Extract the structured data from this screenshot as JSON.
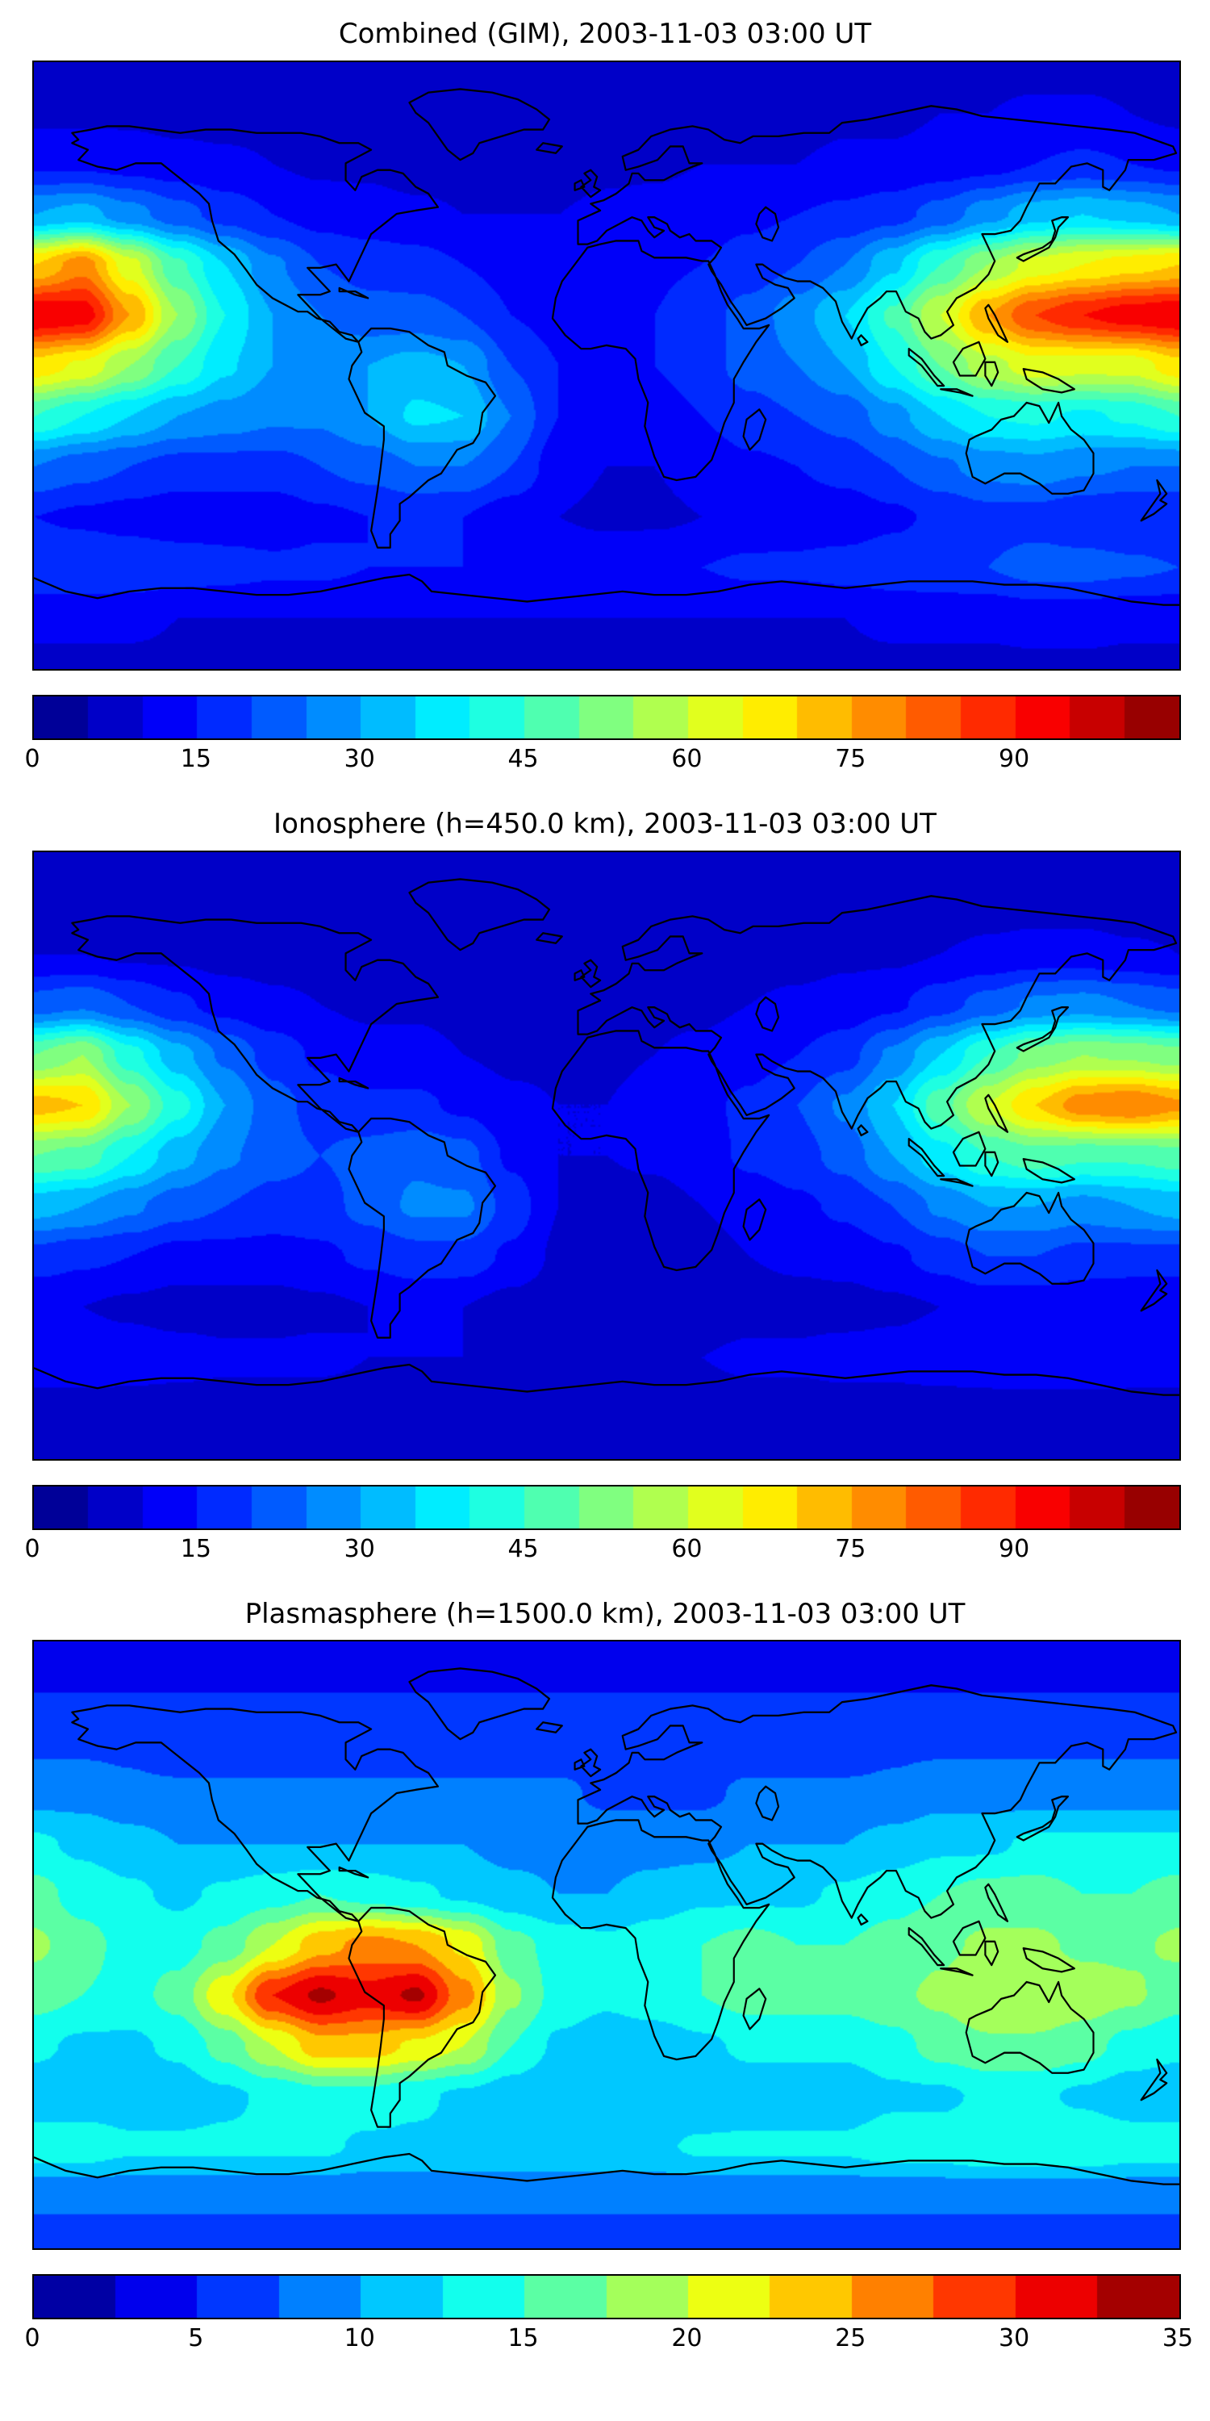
{
  "figure": {
    "background": "#ffffff",
    "text_color": "#000000",
    "colormap": "jet"
  },
  "chart_data": [
    {
      "type": "heatmap",
      "title": "Combined (GIM), 2003-11-03 03:00 UT",
      "projection": "equirectangular",
      "colormap": "jet",
      "vmin": 0,
      "vmax": 105,
      "level_step": 5,
      "colorbar_ticks": [
        0,
        15,
        30,
        45,
        60,
        75,
        90
      ],
      "lon": [
        -180,
        -165,
        -150,
        -135,
        -120,
        -105,
        -90,
        -75,
        -60,
        -45,
        -30,
        -15,
        0,
        15,
        30,
        45,
        60,
        75,
        90,
        105,
        120,
        135,
        150,
        165,
        180
      ],
      "lat": [
        90,
        75,
        60,
        45,
        30,
        15,
        0,
        -15,
        -30,
        -45,
        -60,
        -75,
        -90
      ],
      "values": [
        [
          8,
          8,
          8,
          8,
          8,
          8,
          8,
          8,
          8,
          8,
          8,
          8,
          8,
          8,
          8,
          8,
          8,
          8,
          8,
          8,
          8,
          8,
          8,
          8,
          8
        ],
        [
          9,
          9,
          9,
          8,
          8,
          8,
          8,
          8,
          7,
          7,
          7,
          7,
          7,
          8,
          8,
          8,
          8,
          9,
          9,
          10,
          10,
          11,
          11,
          10,
          9
        ],
        [
          14,
          14,
          13,
          12,
          11,
          10,
          9,
          9,
          8,
          8,
          8,
          8,
          9,
          9,
          10,
          10,
          10,
          11,
          11,
          12,
          13,
          15,
          16,
          15,
          14
        ],
        [
          30,
          32,
          27,
          22,
          18,
          15,
          13,
          12,
          11,
          10,
          10,
          10,
          11,
          12,
          13,
          14,
          15,
          16,
          18,
          22,
          28,
          33,
          35,
          33,
          30
        ],
        [
          70,
          78,
          62,
          46,
          35,
          26,
          20,
          18,
          17,
          15,
          13,
          12,
          12,
          14,
          15,
          17,
          20,
          25,
          34,
          45,
          55,
          62,
          65,
          68,
          70
        ],
        [
          95,
          93,
          75,
          55,
          40,
          30,
          25,
          22,
          22,
          20,
          15,
          13,
          13,
          15,
          18,
          22,
          28,
          35,
          46,
          60,
          75,
          85,
          90,
          93,
          95
        ],
        [
          68,
          64,
          55,
          45,
          36,
          30,
          28,
          30,
          32,
          30,
          20,
          15,
          14,
          15,
          18,
          22,
          25,
          30,
          40,
          50,
          58,
          63,
          62,
          62,
          68
        ],
        [
          45,
          40,
          35,
          30,
          28,
          26,
          26,
          30,
          36,
          35,
          25,
          15,
          12,
          12,
          15,
          18,
          20,
          22,
          28,
          35,
          40,
          41,
          39,
          41,
          45
        ],
        [
          25,
          22,
          20,
          18,
          18,
          18,
          20,
          22,
          25,
          25,
          20,
          12,
          10,
          10,
          12,
          14,
          15,
          17,
          20,
          24,
          27,
          28,
          26,
          25,
          25
        ],
        [
          15,
          14,
          13,
          12,
          12,
          12,
          14,
          15,
          16,
          15,
          12,
          10,
          9,
          9,
          10,
          11,
          12,
          12,
          14,
          16,
          18,
          18,
          16,
          15,
          15
        ],
        [
          20,
          20,
          19,
          18,
          17,
          16,
          16,
          15,
          15,
          15,
          15,
          14,
          14,
          15,
          15,
          16,
          16,
          17,
          18,
          19,
          20,
          22,
          22,
          21,
          20
        ],
        [
          11,
          11,
          11,
          10,
          10,
          10,
          10,
          10,
          10,
          10,
          10,
          10,
          10,
          10,
          10,
          10,
          10,
          10,
          11,
          11,
          11,
          12,
          12,
          11,
          11
        ],
        [
          9,
          9,
          9,
          9,
          9,
          9,
          9,
          9,
          9,
          9,
          9,
          9,
          9,
          9,
          9,
          9,
          9,
          9,
          9,
          9,
          9,
          9,
          9,
          9,
          9
        ]
      ]
    },
    {
      "type": "heatmap",
      "title": "Ionosphere  (h=450.0 km), 2003-11-03 03:00 UT",
      "projection": "equirectangular",
      "colormap": "jet",
      "vmin": 0,
      "vmax": 105,
      "level_step": 5,
      "colorbar_ticks": [
        0,
        15,
        30,
        45,
        60,
        75,
        90
      ],
      "lon": [
        -180,
        -165,
        -150,
        -135,
        -120,
        -105,
        -90,
        -75,
        -60,
        -45,
        -30,
        -15,
        0,
        15,
        30,
        45,
        60,
        75,
        90,
        105,
        120,
        135,
        150,
        165,
        180
      ],
      "lat": [
        90,
        75,
        60,
        45,
        30,
        15,
        0,
        -15,
        -30,
        -45,
        -60,
        -75,
        -90
      ],
      "values": [
        [
          6,
          6,
          6,
          6,
          6,
          6,
          6,
          6,
          6,
          6,
          6,
          6,
          6,
          6,
          6,
          6,
          6,
          6,
          6,
          6,
          6,
          6,
          6,
          6,
          6
        ],
        [
          7,
          7,
          7,
          6,
          6,
          6,
          6,
          6,
          6,
          6,
          6,
          6,
          6,
          6,
          6,
          6,
          6,
          7,
          7,
          7,
          8,
          8,
          8,
          7,
          7
        ],
        [
          10,
          10,
          9,
          9,
          8,
          8,
          8,
          7,
          7,
          7,
          7,
          7,
          7,
          8,
          8,
          8,
          8,
          9,
          9,
          10,
          11,
          12,
          12,
          11,
          10
        ],
        [
          22,
          24,
          20,
          16,
          13,
          11,
          10,
          9,
          9,
          8,
          8,
          8,
          8,
          9,
          9,
          10,
          11,
          12,
          14,
          18,
          22,
          26,
          27,
          25,
          23
        ],
        [
          50,
          55,
          42,
          32,
          24,
          18,
          14,
          12,
          12,
          10,
          9,
          9,
          9,
          10,
          11,
          13,
          15,
          18,
          26,
          35,
          45,
          52,
          55,
          54,
          52
        ],
        [
          72,
          70,
          55,
          42,
          30,
          22,
          18,
          16,
          16,
          14,
          11,
          10,
          10,
          12,
          14,
          16,
          20,
          26,
          35,
          48,
          60,
          70,
          78,
          80,
          76
        ],
        [
          50,
          48,
          40,
          32,
          26,
          22,
          20,
          22,
          24,
          22,
          14,
          10,
          10,
          11,
          13,
          16,
          18,
          22,
          30,
          38,
          45,
          48,
          46,
          46,
          48
        ],
        [
          32,
          30,
          26,
          22,
          20,
          18,
          18,
          22,
          26,
          26,
          18,
          10,
          8,
          8,
          10,
          12,
          14,
          16,
          20,
          26,
          30,
          30,
          28,
          30,
          32
        ],
        [
          18,
          16,
          15,
          13,
          13,
          13,
          14,
          16,
          18,
          18,
          14,
          9,
          7,
          7,
          8,
          10,
          11,
          12,
          14,
          17,
          20,
          20,
          18,
          18,
          18
        ],
        [
          10,
          10,
          9,
          8,
          8,
          8,
          9,
          10,
          11,
          10,
          8,
          7,
          6,
          6,
          7,
          8,
          8,
          8,
          9,
          10,
          12,
          12,
          11,
          10,
          10
        ],
        [
          14,
          14,
          13,
          12,
          11,
          11,
          11,
          10,
          10,
          10,
          10,
          10,
          10,
          10,
          10,
          11,
          11,
          12,
          12,
          13,
          14,
          15,
          15,
          14,
          14
        ],
        [
          8,
          8,
          8,
          8,
          8,
          8,
          8,
          8,
          8,
          8,
          8,
          8,
          8,
          8,
          8,
          8,
          8,
          8,
          8,
          8,
          8,
          8,
          8,
          8,
          8
        ],
        [
          7,
          7,
          7,
          7,
          7,
          7,
          7,
          7,
          7,
          7,
          7,
          7,
          7,
          7,
          7,
          7,
          7,
          7,
          7,
          7,
          7,
          7,
          7,
          7,
          7
        ]
      ]
    },
    {
      "type": "heatmap",
      "title": "Plasmasphere (h=1500.0 km), 2003-11-03 03:00 UT",
      "projection": "equirectangular",
      "colormap": "jet",
      "vmin": 0,
      "vmax": 35,
      "level_step": 2.5,
      "colorbar_ticks": [
        0,
        5,
        10,
        15,
        20,
        25,
        30,
        35
      ],
      "lon": [
        -180,
        -165,
        -150,
        -135,
        -120,
        -105,
        -90,
        -75,
        -60,
        -45,
        -30,
        -15,
        0,
        15,
        30,
        45,
        60,
        75,
        90,
        105,
        120,
        135,
        150,
        165,
        180
      ],
      "lat": [
        90,
        75,
        60,
        45,
        30,
        15,
        0,
        -15,
        -30,
        -45,
        -60,
        -75,
        -90
      ],
      "values": [
        [
          4,
          4,
          4,
          4,
          4,
          4,
          4,
          4,
          4,
          4,
          4,
          4,
          4,
          4,
          4,
          4,
          4,
          4,
          4,
          4,
          4,
          4,
          4,
          4,
          4
        ],
        [
          5,
          5,
          5,
          5,
          5,
          5,
          5,
          5,
          5,
          5,
          5,
          5,
          5,
          5,
          5,
          5,
          5,
          5,
          5,
          5,
          5,
          5,
          5,
          5,
          5
        ],
        [
          7,
          7,
          7,
          6,
          6,
          6,
          6,
          6,
          6,
          6,
          6,
          6,
          6,
          6,
          6,
          6,
          6,
          6,
          7,
          7,
          7,
          7,
          7,
          7,
          7
        ],
        [
          9,
          9,
          8,
          8,
          8,
          8,
          8,
          8,
          8,
          8,
          8,
          8,
          7,
          7,
          7,
          8,
          8,
          8,
          8,
          9,
          9,
          9,
          9,
          9,
          9
        ],
        [
          13,
          12,
          11,
          10,
          10,
          10,
          10,
          10,
          10,
          10,
          9,
          9,
          9,
          9,
          9,
          10,
          10,
          10,
          11,
          12,
          12,
          13,
          13,
          13,
          13
        ],
        [
          16,
          14,
          13,
          12,
          13,
          14,
          15,
          14,
          13,
          12,
          11,
          10,
          10,
          11,
          12,
          12,
          12,
          13,
          14,
          15,
          16,
          16,
          15,
          15,
          16
        ],
        [
          18,
          16,
          14,
          14,
          16,
          20,
          24,
          26,
          25,
          22,
          16,
          14,
          13,
          14,
          15,
          16,
          15,
          15,
          16,
          17,
          18,
          18,
          17,
          17,
          18
        ],
        [
          16,
          15,
          14,
          16,
          22,
          30,
          33,
          31,
          33,
          26,
          18,
          14,
          13,
          14,
          15,
          16,
          16,
          16,
          17,
          18,
          20,
          20,
          19,
          18,
          16
        ],
        [
          13,
          12,
          12,
          13,
          16,
          20,
          24,
          24,
          22,
          20,
          15,
          12,
          11,
          11,
          12,
          13,
          13,
          13,
          14,
          16,
          17,
          17,
          16,
          14,
          13
        ],
        [
          11,
          11,
          11,
          11,
          12,
          13,
          14,
          14,
          13,
          12,
          11,
          10,
          10,
          10,
          10,
          11,
          11,
          11,
          12,
          12,
          13,
          13,
          12,
          11,
          11
        ],
        [
          14,
          14,
          13,
          13,
          13,
          13,
          13,
          12,
          12,
          12,
          12,
          12,
          12,
          12,
          13,
          13,
          13,
          13,
          14,
          14,
          15,
          15,
          15,
          14,
          14
        ],
        [
          8,
          8,
          8,
          8,
          8,
          8,
          8,
          8,
          8,
          8,
          8,
          8,
          8,
          8,
          8,
          8,
          8,
          8,
          8,
          8,
          8,
          8,
          8,
          8,
          8
        ],
        [
          6,
          6,
          6,
          6,
          6,
          6,
          6,
          6,
          6,
          6,
          6,
          6,
          6,
          6,
          6,
          6,
          6,
          6,
          6,
          6,
          6,
          6,
          6,
          6,
          6
        ]
      ]
    }
  ]
}
